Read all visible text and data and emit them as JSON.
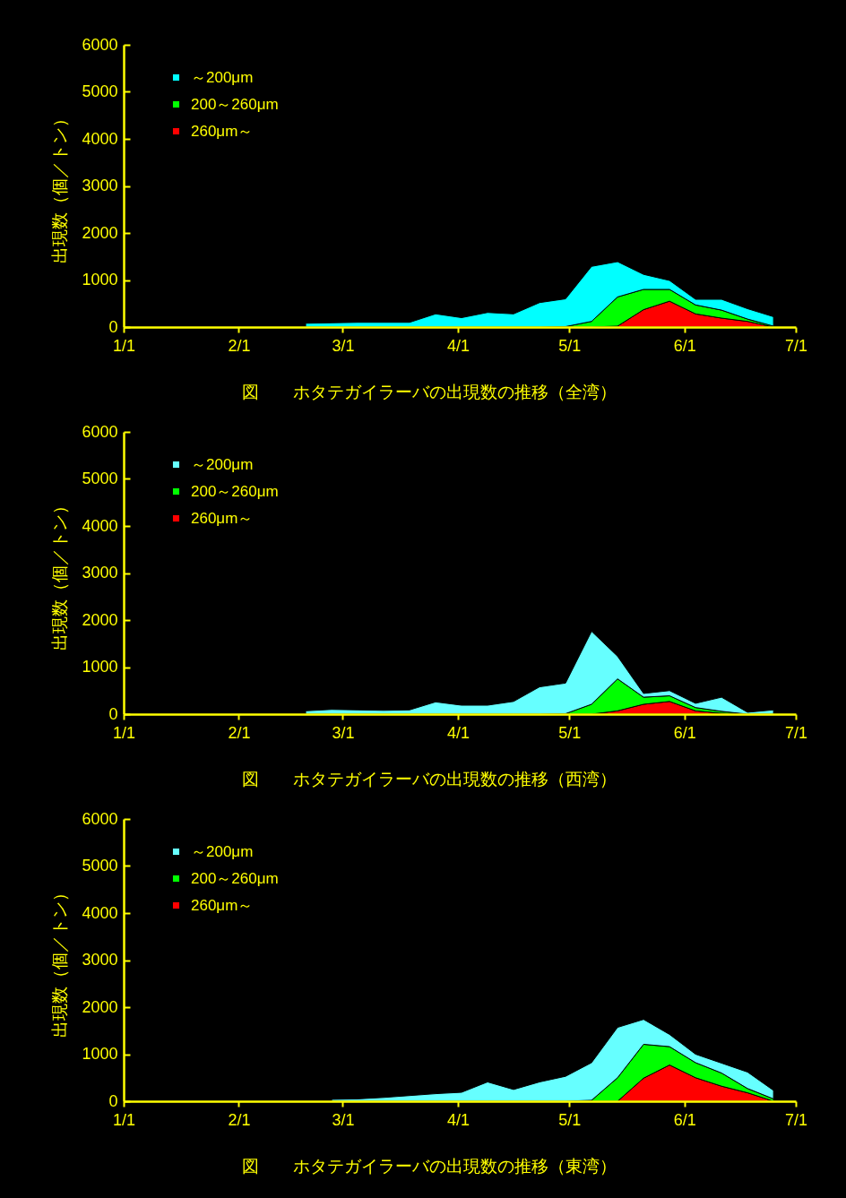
{
  "chart_data": [
    {
      "type": "area",
      "stacked": true,
      "title": "図　　ホタテガイラーバの出現数の推移（全湾）",
      "ylabel": "出現数（個／トン）",
      "x": [
        "--02-19",
        "--02-26",
        "--03-05",
        "--03-12",
        "--03-19",
        "--03-26",
        "--04-02",
        "--04-09",
        "--04-16",
        "--04-23",
        "--04-30",
        "--05-07",
        "--05-14",
        "--05-21",
        "--05-28",
        "--06-04",
        "--06-11",
        "--06-18",
        "--06-25"
      ],
      "series": [
        {
          "name": "260μm～",
          "color": "#ff0000",
          "values": [
            0,
            0,
            0,
            0,
            0,
            0,
            0,
            0,
            0,
            0,
            0,
            0,
            20,
            370,
            550,
            280,
            190,
            120,
            0
          ]
        },
        {
          "name": "200～260μm",
          "color": "#00ff00",
          "values": [
            0,
            0,
            0,
            0,
            0,
            0,
            0,
            0,
            0,
            0,
            10,
            120,
            620,
            430,
            250,
            190,
            170,
            50,
            20
          ]
        },
        {
          "name": "～200μm",
          "color": "#00ffff",
          "values": [
            80,
            90,
            100,
            100,
            100,
            280,
            200,
            310,
            280,
            520,
            590,
            1170,
            750,
            320,
            190,
            120,
            230,
            220,
            200
          ]
        }
      ],
      "xlim": [
        "--01-01",
        "--07-01"
      ],
      "xticks": [
        {
          "value": "--01-01",
          "label": "1/1"
        },
        {
          "value": "--02-01",
          "label": "2/1"
        },
        {
          "value": "--03-01",
          "label": "3/1"
        },
        {
          "value": "--04-01",
          "label": "4/1"
        },
        {
          "value": "--05-01",
          "label": "5/1"
        },
        {
          "value": "--06-01",
          "label": "6/1"
        },
        {
          "value": "--07-01",
          "label": "7/1"
        }
      ],
      "ylim": [
        0,
        6000
      ],
      "yticks": [
        0,
        1000,
        2000,
        3000,
        4000,
        5000,
        6000
      ],
      "legend": "top left"
    },
    {
      "type": "area",
      "stacked": true,
      "title": "図　　ホタテガイラーバの出現数の推移（西湾）",
      "ylabel": "出現数（個／トン）",
      "x": [
        "--02-19",
        "--02-26",
        "--03-05",
        "--03-12",
        "--03-19",
        "--03-26",
        "--04-02",
        "--04-09",
        "--04-16",
        "--04-23",
        "--04-30",
        "--05-07",
        "--05-14",
        "--05-21",
        "--05-28",
        "--06-04",
        "--06-11",
        "--06-18",
        "--06-25"
      ],
      "series": [
        {
          "name": "260μm～",
          "color": "#ff0000",
          "values": [
            0,
            0,
            0,
            0,
            0,
            0,
            0,
            0,
            0,
            0,
            0,
            0,
            70,
            210,
            270,
            70,
            20,
            0,
            0
          ]
        },
        {
          "name": "200～260μm",
          "color": "#00ff00",
          "values": [
            0,
            0,
            0,
            0,
            0,
            0,
            0,
            0,
            0,
            0,
            10,
            210,
            680,
            150,
            120,
            70,
            40,
            0,
            0
          ]
        },
        {
          "name": "～200μm",
          "color": "#66ffff",
          "values": [
            70,
            100,
            90,
            80,
            90,
            260,
            190,
            190,
            270,
            580,
            650,
            1550,
            480,
            80,
            110,
            90,
            300,
            40,
            90
          ]
        }
      ],
      "xlim": [
        "--01-01",
        "--07-01"
      ],
      "xticks": [
        {
          "value": "--01-01",
          "label": "1/1"
        },
        {
          "value": "--02-01",
          "label": "2/1"
        },
        {
          "value": "--03-01",
          "label": "3/1"
        },
        {
          "value": "--04-01",
          "label": "4/1"
        },
        {
          "value": "--05-01",
          "label": "5/1"
        },
        {
          "value": "--06-01",
          "label": "6/1"
        },
        {
          "value": "--07-01",
          "label": "7/1"
        }
      ],
      "ylim": [
        0,
        6000
      ],
      "yticks": [
        0,
        1000,
        2000,
        3000,
        4000,
        5000,
        6000
      ],
      "legend": "top left"
    },
    {
      "type": "area",
      "stacked": true,
      "title": "図　　ホタテガイラーバの出現数の推移（東湾）",
      "ylabel": "出現数（個／トン）",
      "x": [
        "--02-26",
        "--03-05",
        "--03-12",
        "--03-19",
        "--03-26",
        "--04-02",
        "--04-09",
        "--04-16",
        "--04-23",
        "--04-30",
        "--05-07",
        "--05-14",
        "--05-21",
        "--05-28",
        "--06-04",
        "--06-11",
        "--06-18",
        "--06-25"
      ],
      "series": [
        {
          "name": "260μm～",
          "color": "#ff0000",
          "values": [
            0,
            0,
            0,
            0,
            0,
            0,
            0,
            0,
            0,
            0,
            0,
            0,
            490,
            770,
            500,
            320,
            180,
            0
          ]
        },
        {
          "name": "200～260μm",
          "color": "#00ff00",
          "values": [
            0,
            0,
            0,
            0,
            0,
            0,
            0,
            0,
            0,
            0,
            20,
            500,
            720,
            390,
            320,
            280,
            90,
            50
          ]
        },
        {
          "name": "～200μm",
          "color": "#66ffff",
          "values": [
            40,
            50,
            80,
            120,
            160,
            190,
            410,
            250,
            410,
            530,
            800,
            1070,
            530,
            260,
            180,
            210,
            350,
            180
          ]
        }
      ],
      "xlim": [
        "--01-01",
        "--07-01"
      ],
      "xticks": [
        {
          "value": "--01-01",
          "label": "1/1"
        },
        {
          "value": "--02-01",
          "label": "2/1"
        },
        {
          "value": "--03-01",
          "label": "3/1"
        },
        {
          "value": "--04-01",
          "label": "4/1"
        },
        {
          "value": "--05-01",
          "label": "5/1"
        },
        {
          "value": "--06-01",
          "label": "6/1"
        },
        {
          "value": "--07-01",
          "label": "7/1"
        }
      ],
      "ylim": [
        0,
        6000
      ],
      "yticks": [
        0,
        1000,
        2000,
        3000,
        4000,
        5000,
        6000
      ],
      "legend": "top left"
    }
  ]
}
